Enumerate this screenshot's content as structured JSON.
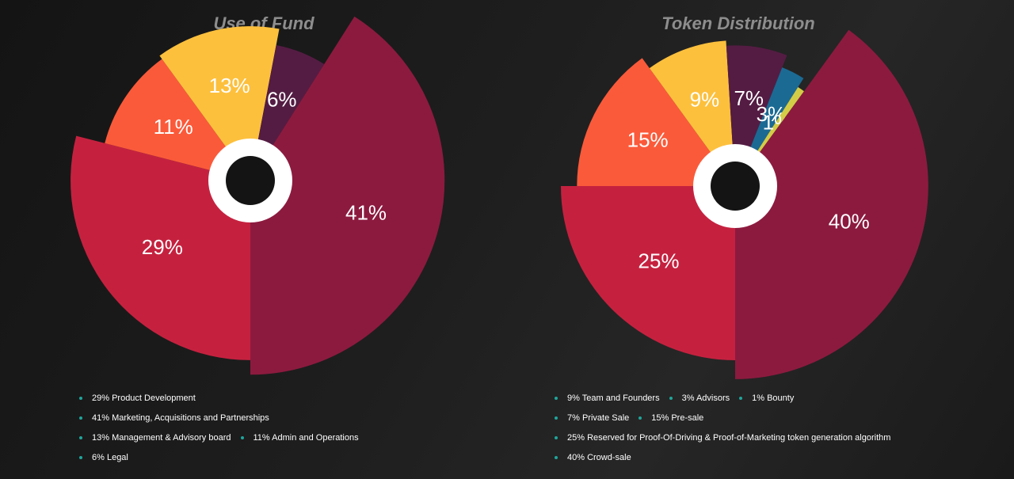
{
  "chart_data": [
    {
      "type": "pie",
      "title": "Use of Fund",
      "categories": [
        "29% Product Development",
        "41% Marketing, Acquisitions and Partnerships",
        "13% Management & Advisory board",
        "11% Admin and Operations",
        "6% Legal"
      ],
      "values": [
        29,
        41,
        13,
        11,
        6
      ],
      "value_labels": [
        "29%",
        "41%",
        "13%",
        "11%",
        "6%"
      ],
      "colors": [
        "#c5213f",
        "#8c1a3f",
        "#fdc03d",
        "#fb5a3a",
        "#541c43"
      ]
    },
    {
      "type": "pie",
      "title": "Token Distribution",
      "categories": [
        "9% Team and Founders",
        "3% Advisors",
        "1% Bounty",
        "7% Private Sale",
        "15% Pre-sale",
        "25% Reserved for Proof-Of-Driving & Proof-of-Marketing token generation algorithm",
        "40% Crowd-sale"
      ],
      "values": [
        9,
        3,
        1,
        7,
        15,
        25,
        40
      ],
      "value_labels": [
        "9%",
        "3%",
        "1%",
        "7%",
        "15%",
        "25%",
        "40%"
      ],
      "colors": [
        "#fdc03d",
        "#1b6a94",
        "#d3cc47",
        "#541c43",
        "#fb5a3a",
        "#c5213f",
        "#8c1a3f"
      ]
    }
  ]
}
